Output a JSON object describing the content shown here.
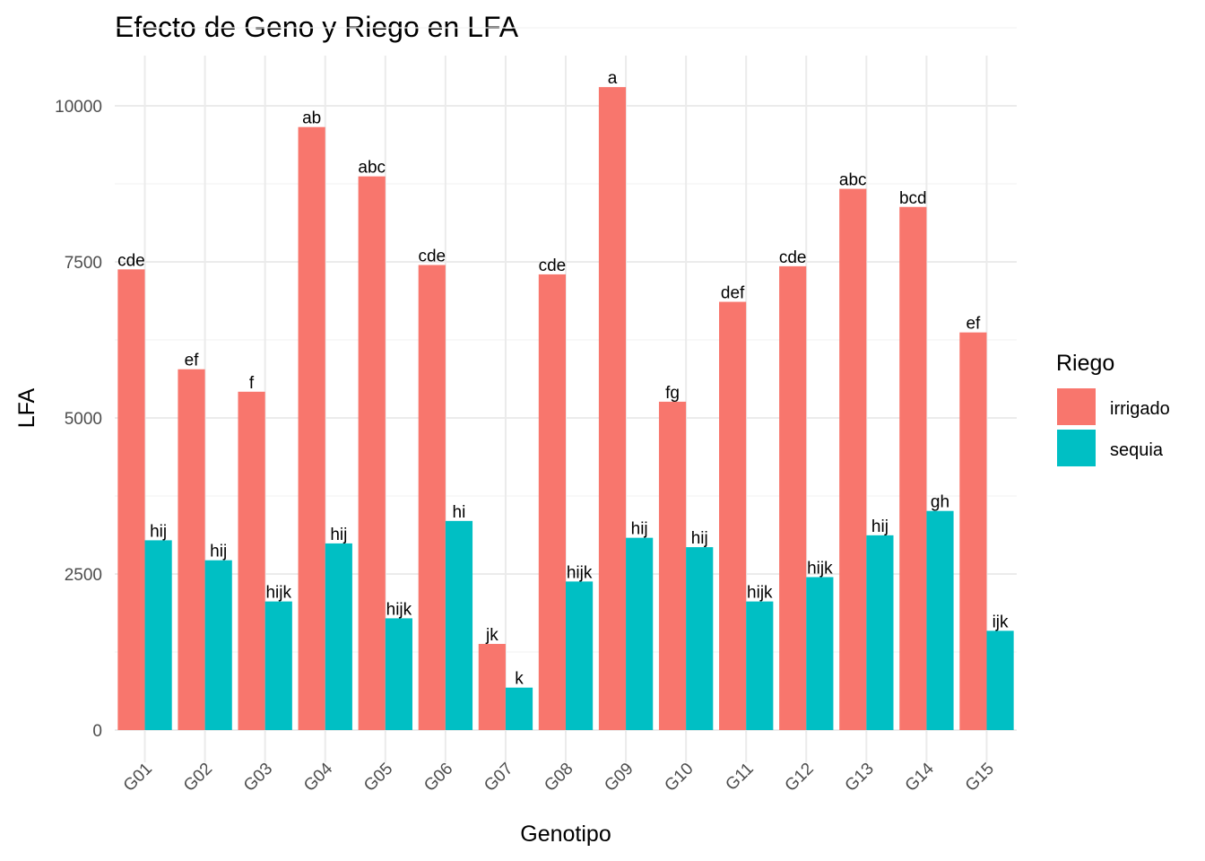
{
  "chart_data": {
    "type": "bar",
    "title": "Efecto de Geno y Riego en LFA",
    "xlabel": "Genotipo",
    "ylabel": "LFA",
    "ylim": [
      -450,
      10750
    ],
    "yticks": [
      0,
      2500,
      5000,
      7500,
      10000
    ],
    "ytick_labels": [
      "0",
      "2500",
      "5000",
      "7500",
      "10000"
    ],
    "grid": true,
    "legend_title": "Riego",
    "legend_position": "right",
    "categories": [
      "G01",
      "G02",
      "G03",
      "G04",
      "G05",
      "G06",
      "G07",
      "G08",
      "G09",
      "G10",
      "G11",
      "G12",
      "G13",
      "G14",
      "G15"
    ],
    "series": [
      {
        "name": "irrigado",
        "color": "#F8766D",
        "values": [
          7380,
          5780,
          5420,
          9660,
          8870,
          7450,
          1380,
          7300,
          10300,
          5260,
          6860,
          7430,
          8670,
          8380,
          6370
        ],
        "labels": [
          "cde",
          "ef",
          "f",
          "ab",
          "abc",
          "cde",
          "jk",
          "cde",
          "a",
          "fg",
          "def",
          "cde",
          "abc",
          "bcd",
          "ef"
        ]
      },
      {
        "name": "sequia",
        "color": "#00BFC4",
        "values": [
          3040,
          2720,
          2060,
          2990,
          1790,
          3350,
          680,
          2380,
          3080,
          2930,
          2060,
          2450,
          3120,
          3510,
          1590
        ],
        "labels": [
          "hij",
          "hij",
          "hijk",
          "hij",
          "hijk",
          "hi",
          "k",
          "hijk",
          "hij",
          "hij",
          "hijk",
          "hijk",
          "hij",
          "gh",
          "ijk"
        ]
      }
    ]
  }
}
